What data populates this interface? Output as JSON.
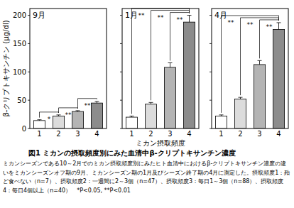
{
  "chart_data": [
    {
      "type": "bar",
      "title": "9月",
      "y_label": "β-クリプトキサンチン (μg/dl)",
      "categories": [
        "1",
        "2",
        "3",
        "4"
      ],
      "values": [
        14,
        22,
        30,
        45
      ],
      "errors": [
        1.5,
        2,
        1.5,
        3
      ],
      "colors": [
        "#ffffff",
        "#dcdcdc",
        "#b4b4b4",
        "#8c8c8c"
      ],
      "ylim": [
        0,
        212
      ],
      "yticks": [
        0,
        50,
        100,
        150,
        200
      ],
      "significance": [
        {
          "pair": [
            "1",
            "2"
          ],
          "label": "*"
        },
        {
          "pair": [
            "2",
            "3"
          ],
          "label": "**"
        },
        {
          "pair": [
            "3",
            "4"
          ],
          "label": "**"
        }
      ]
    },
    {
      "type": "bar",
      "title": "1月",
      "x_label": "ミカン摂取頻度",
      "categories": [
        "1",
        "2",
        "3",
        "4"
      ],
      "values": [
        20,
        43,
        108,
        188
      ],
      "errors": [
        2,
        3,
        8,
        12
      ],
      "colors": [
        "#ffffff",
        "#dcdcdc",
        "#b4b4b4",
        "#8c8c8c"
      ],
      "ylim": [
        0,
        212
      ],
      "yticks": [
        0,
        50,
        100,
        150,
        200
      ],
      "tick_labels": "x",
      "significance": [
        {
          "pair": [
            "3",
            "4"
          ],
          "label": "**"
        },
        {
          "pair": [
            "2",
            "4"
          ],
          "label": "**"
        },
        {
          "pair": [
            "1",
            "4"
          ],
          "label": "**"
        }
      ]
    },
    {
      "type": "bar",
      "title": "4月",
      "categories": [
        "1",
        "2",
        "3",
        "4"
      ],
      "values": [
        22,
        52,
        113,
        175
      ],
      "errors": [
        2,
        3,
        7,
        12
      ],
      "colors": [
        "#ffffff",
        "#dcdcdc",
        "#b4b4b4",
        "#8c8c8c"
      ],
      "ylim": [
        0,
        212
      ],
      "yticks": [
        0,
        50,
        100,
        150,
        200
      ],
      "tick_labels": "x",
      "significance": [
        {
          "pair": [
            "3",
            "4"
          ],
          "label": "**"
        },
        {
          "pair": [
            "2",
            "4"
          ],
          "label": "**"
        },
        {
          "pair": [
            "1",
            "4"
          ],
          "label": "**"
        }
      ]
    }
  ],
  "caption": {
    "title": "図1 ミカンの摂取頻度別にみた血清中β-クリプトキサンチン濃度",
    "body": "ミカンシーズンである10～2月でのミカン摂取頻度別にみたヒト血清中におけるβ-クリプトキサンチン濃度の違いをミカンシーズンオフ期の9月、ミカンシーズン期の1月及びシーズン終了期の4月に測定した。摂取頻度1：殆ど食べない（n=7）、摂取頻度2：一週間に2～3個（n=47）、摂取頻度3：毎日1～3個（n=88）、摂取頻度4：毎日4個以上（n=40）　*P<0.05, **P<0.01"
  }
}
